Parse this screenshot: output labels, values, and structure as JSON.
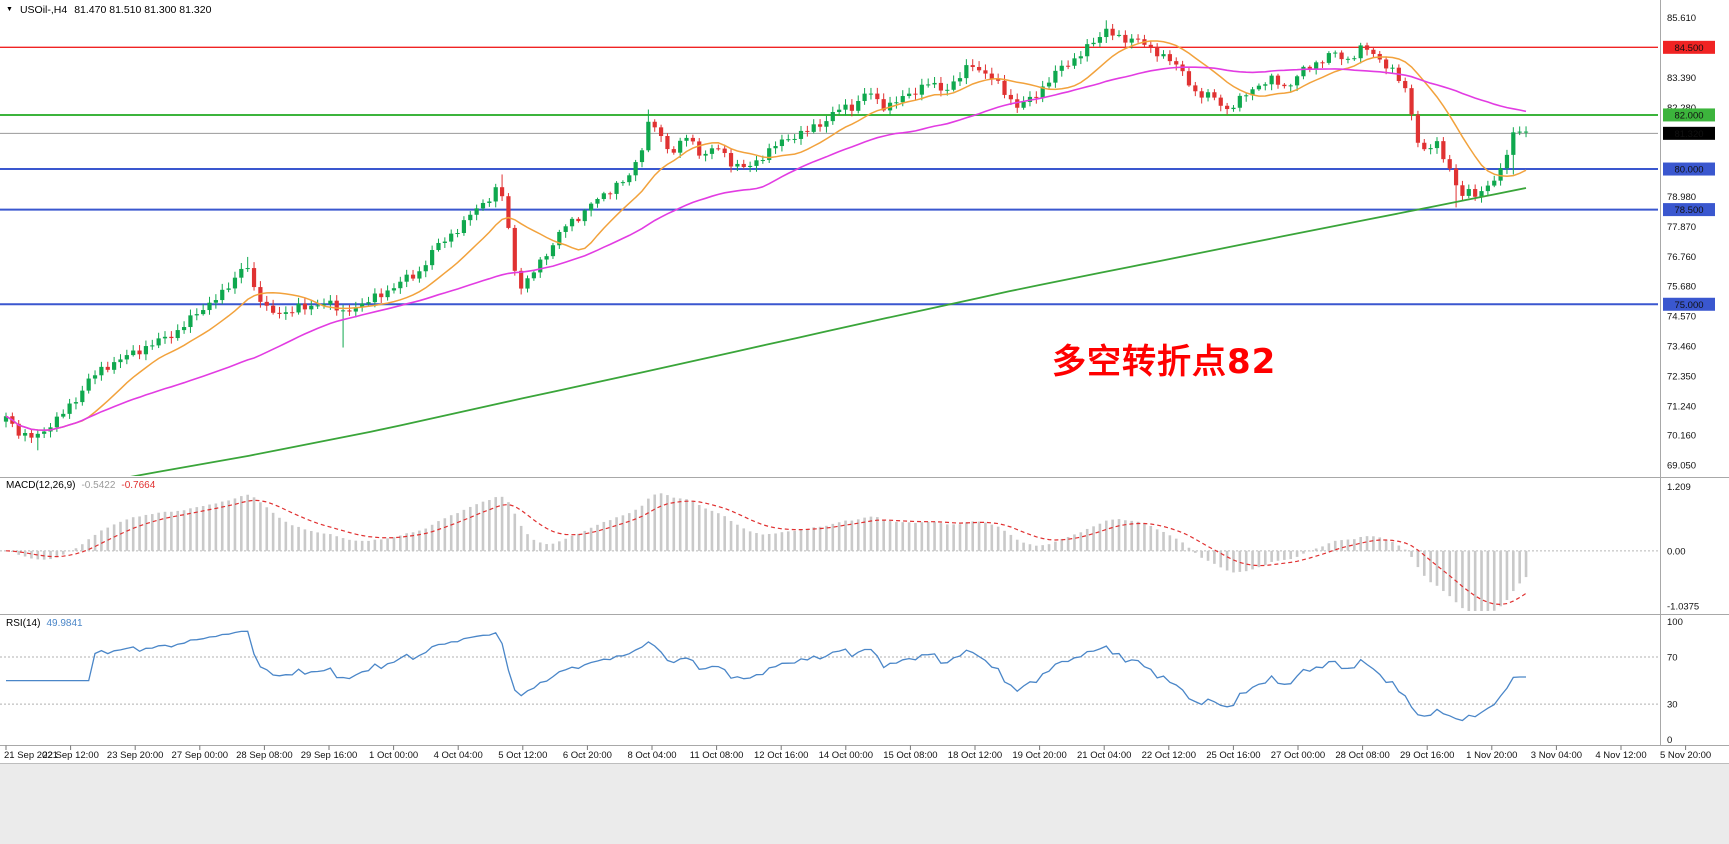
{
  "header": {
    "symbol_label": "USOil-,H4",
    "ohlc": "81.470 81.510 81.300 81.320",
    "dropdown_icon": "▼"
  },
  "chart_data": {
    "type": "candlestick",
    "title": "USOil- H4",
    "symbol": "USOil-",
    "timeframe": "H4",
    "last_open": "81.470",
    "last_high": "81.510",
    "last_low": "81.300",
    "last_close": "81.320",
    "n_candles": 240,
    "price_range": [
      68.65,
      86.25
    ],
    "candle_colors": {
      "up": "#0fa84e",
      "down": "#e03232"
    },
    "close_waypoints": [
      [
        0,
        70.8
      ],
      [
        0.01,
        70.2
      ],
      [
        0.02,
        70.05
      ],
      [
        0.03,
        70.6
      ],
      [
        0.044,
        71.3
      ],
      [
        0.054,
        72.2
      ],
      [
        0.069,
        72.8
      ],
      [
        0.084,
        73.2
      ],
      [
        0.099,
        73.6
      ],
      [
        0.113,
        74.0
      ],
      [
        0.128,
        74.8
      ],
      [
        0.143,
        75.4
      ],
      [
        0.153,
        76.2
      ],
      [
        0.158,
        76.55
      ],
      [
        0.163,
        75.5
      ],
      [
        0.172,
        74.9
      ],
      [
        0.182,
        74.5
      ],
      [
        0.192,
        75.0
      ],
      [
        0.202,
        74.8
      ],
      [
        0.212,
        75.2
      ],
      [
        0.222,
        74.6
      ],
      [
        0.232,
        75.0
      ],
      [
        0.246,
        75.3
      ],
      [
        0.261,
        75.9
      ],
      [
        0.271,
        76.1
      ],
      [
        0.281,
        77.0
      ],
      [
        0.291,
        77.5
      ],
      [
        0.3,
        77.9
      ],
      [
        0.31,
        78.6
      ],
      [
        0.32,
        79.0
      ],
      [
        0.325,
        79.4
      ],
      [
        0.33,
        78.0
      ],
      [
        0.335,
        76.2
      ],
      [
        0.34,
        75.5
      ],
      [
        0.35,
        76.5
      ],
      [
        0.36,
        77.2
      ],
      [
        0.369,
        78.0
      ],
      [
        0.379,
        78.3
      ],
      [
        0.389,
        78.9
      ],
      [
        0.399,
        79.3
      ],
      [
        0.409,
        79.6
      ],
      [
        0.419,
        80.9
      ],
      [
        0.424,
        81.9
      ],
      [
        0.429,
        81.3
      ],
      [
        0.438,
        80.6
      ],
      [
        0.448,
        81.2
      ],
      [
        0.458,
        80.5
      ],
      [
        0.468,
        80.8
      ],
      [
        0.478,
        80.2
      ],
      [
        0.488,
        80.0
      ],
      [
        0.498,
        80.5
      ],
      [
        0.507,
        80.9
      ],
      [
        0.517,
        81.2
      ],
      [
        0.527,
        81.4
      ],
      [
        0.537,
        81.7
      ],
      [
        0.547,
        82.2
      ],
      [
        0.557,
        82.3
      ],
      [
        0.567,
        82.9
      ],
      [
        0.576,
        82.3
      ],
      [
        0.586,
        82.5
      ],
      [
        0.596,
        82.8
      ],
      [
        0.606,
        83.2
      ],
      [
        0.616,
        82.9
      ],
      [
        0.626,
        83.3
      ],
      [
        0.635,
        83.9
      ],
      [
        0.645,
        83.5
      ],
      [
        0.655,
        83.0
      ],
      [
        0.665,
        82.3
      ],
      [
        0.675,
        82.6
      ],
      [
        0.685,
        83.2
      ],
      [
        0.695,
        83.8
      ],
      [
        0.704,
        84.1
      ],
      [
        0.714,
        84.6
      ],
      [
        0.724,
        85.2
      ],
      [
        0.734,
        84.7
      ],
      [
        0.744,
        84.9
      ],
      [
        0.754,
        84.3
      ],
      [
        0.764,
        84.2
      ],
      [
        0.773,
        83.6
      ],
      [
        0.783,
        82.8
      ],
      [
        0.793,
        82.7
      ],
      [
        0.803,
        82.2
      ],
      [
        0.813,
        82.6
      ],
      [
        0.823,
        83.1
      ],
      [
        0.833,
        83.3
      ],
      [
        0.842,
        83.0
      ],
      [
        0.852,
        83.6
      ],
      [
        0.862,
        83.9
      ],
      [
        0.872,
        84.3
      ],
      [
        0.882,
        84.0
      ],
      [
        0.892,
        84.5
      ],
      [
        0.901,
        84.2
      ],
      [
        0.911,
        83.7
      ],
      [
        0.921,
        82.9
      ],
      [
        0.926,
        81.8
      ],
      [
        0.931,
        80.5
      ],
      [
        0.941,
        81.0
      ],
      [
        0.951,
        79.9
      ],
      [
        0.956,
        78.9
      ],
      [
        0.961,
        79.2
      ],
      [
        0.97,
        79.1
      ],
      [
        0.98,
        79.6
      ],
      [
        0.985,
        80.2
      ],
      [
        0.99,
        81.2
      ],
      [
        0.995,
        81.4
      ],
      [
        1,
        81.32
      ]
    ],
    "long_wicks": [
      {
        "t": 0.02,
        "low": 69.6
      },
      {
        "t": 0.158,
        "high": 76.75
      },
      {
        "t": 0.222,
        "low": 73.4
      },
      {
        "t": 0.325,
        "high": 79.8
      },
      {
        "t": 0.424,
        "high": 82.2
      },
      {
        "t": 0.724,
        "high": 85.5
      },
      {
        "t": 0.956,
        "low": 78.58
      },
      {
        "t": 0.99,
        "low": 79.8
      }
    ],
    "moving_averages": {
      "fast": {
        "period": 12,
        "color": "#f2a23c"
      },
      "mid": {
        "period": 40,
        "color": "#e23ce2"
      },
      "slow": {
        "color": "#3aa53a",
        "waypoints": [
          [
            0,
            67.9
          ],
          [
            0.08,
            68.6
          ],
          [
            0.16,
            69.4
          ],
          [
            0.25,
            70.4
          ],
          [
            0.33,
            71.4
          ],
          [
            0.42,
            72.5
          ],
          [
            0.5,
            73.5
          ],
          [
            0.58,
            74.5
          ],
          [
            0.67,
            75.6
          ],
          [
            0.75,
            76.5
          ],
          [
            0.83,
            77.4
          ],
          [
            0.92,
            78.4
          ],
          [
            1,
            79.3
          ]
        ]
      }
    },
    "hlines": [
      {
        "price": 84.5,
        "label": "84.500",
        "color": "#f02323",
        "width": 1.4
      },
      {
        "price": 82.0,
        "label": "82.000",
        "color": "#3cb43c",
        "width": 2
      },
      {
        "price": 80.0,
        "label": "80.000",
        "color": "#3a57cf",
        "width": 2
      },
      {
        "price": 78.5,
        "label": "78.500",
        "color": "#3a57cf",
        "width": 2
      },
      {
        "price": 75.0,
        "label": "75.000",
        "color": "#3a57cf",
        "width": 2
      }
    ],
    "bid_line": {
      "price": 81.32,
      "label": "81.320",
      "color": "#9a9a9a",
      "box_color": "#000000"
    },
    "y_axis_ticks": [
      "85.610",
      "83.390",
      "82.280",
      "78.980",
      "77.870",
      "76.760",
      "75.680",
      "74.570",
      "73.460",
      "72.350",
      "71.240",
      "70.160",
      "69.050"
    ],
    "x_labels": [
      "21 Sep 2021",
      "22 Sep 12:00",
      "23 Sep 20:00",
      "27 Sep 00:00",
      "28 Sep 08:00",
      "29 Sep 16:00",
      "1 Oct 00:00",
      "4 Oct 04:00",
      "5 Oct 12:00",
      "6 Oct 20:00",
      "8 Oct 04:00",
      "11 Oct 08:00",
      "12 Oct 16:00",
      "14 Oct 00:00",
      "15 Oct 08:00",
      "18 Oct 12:00",
      "19 Oct 20:00",
      "21 Oct 04:00",
      "22 Oct 12:00",
      "25 Oct 16:00",
      "27 Oct 00:00",
      "28 Oct 08:00",
      "29 Oct 16:00",
      "1 Nov 20:00",
      "3 Nov 04:00",
      "4 Nov 12:00",
      "5 Nov 20:00"
    ],
    "annotation": {
      "text": "多空转折点82",
      "color": "#ff0000"
    },
    "indicators": [
      {
        "type": "macd",
        "label": "MACD(12,26,9)",
        "main_value": "-0.5422",
        "signal_value": "-0.7664",
        "ticks": [
          "1.209",
          "0.00",
          "-1.0375"
        ],
        "tick_values": [
          1.209,
          0,
          -1.0375
        ],
        "range": [
          -1.15,
          1.35
        ],
        "histogram_color": "#c9c9c9",
        "main_value_color": "#9b9b9b",
        "signal_color": "#e03030"
      },
      {
        "type": "rsi",
        "label": "RSI(14)",
        "value": "49.9841",
        "ticks": [
          "100",
          "70",
          "30",
          "0"
        ],
        "tick_values": [
          100,
          70,
          30,
          0
        ],
        "levels": [
          70,
          30
        ],
        "range": [
          0,
          100
        ],
        "line_color": "#4a86c8"
      }
    ]
  }
}
